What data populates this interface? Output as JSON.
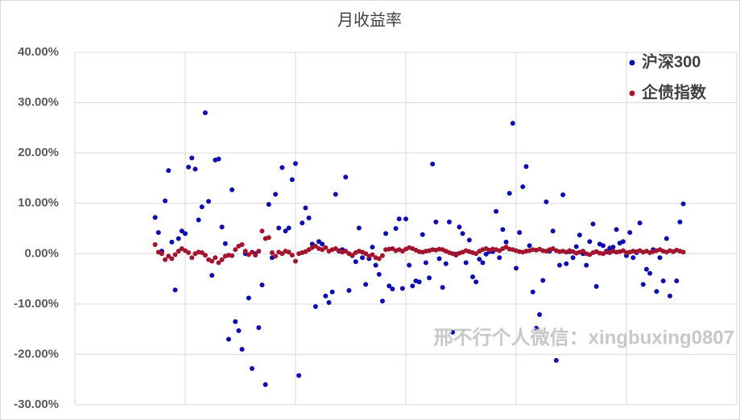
{
  "chart_data": {
    "type": "scatter",
    "title": "月收益率",
    "annotation": "邢不行个人微信：xingbuxing0807",
    "xlim": [
      0,
      198
    ],
    "xticks": [
      0,
      33,
      66,
      99,
      132,
      165,
      198
    ],
    "ylim": [
      -30,
      40
    ],
    "yticks": [
      {
        "value": -30,
        "label": "-30.00%"
      },
      {
        "value": -20,
        "label": "-20.00%"
      },
      {
        "value": -10,
        "label": "-10.00%"
      },
      {
        "value": 0,
        "label": "0.00%"
      },
      {
        "value": 10,
        "label": "10.00%"
      },
      {
        "value": 20,
        "label": "20.00%"
      },
      {
        "value": 30,
        "label": "30.00%"
      },
      {
        "value": 40,
        "label": "40.00%"
      }
    ],
    "grid": true,
    "legend": "top-right",
    "x": [
      24,
      25,
      26,
      27,
      28,
      29,
      30,
      31,
      32,
      33,
      34,
      35,
      36,
      37,
      38,
      39,
      40,
      41,
      42,
      43,
      44,
      45,
      46,
      47,
      48,
      49,
      50,
      51,
      52,
      53,
      54,
      55,
      56,
      57,
      58,
      59,
      60,
      61,
      62,
      63,
      64,
      65,
      66,
      67,
      68,
      69,
      70,
      71,
      72,
      73,
      74,
      75,
      76,
      77,
      78,
      79,
      80,
      81,
      82,
      83,
      84,
      85,
      86,
      87,
      88,
      89,
      90,
      91,
      92,
      93,
      94,
      95,
      96,
      97,
      98,
      99,
      100,
      101,
      102,
      103,
      104,
      105,
      106,
      107,
      108,
      109,
      110,
      111,
      112,
      113,
      114,
      115,
      116,
      117,
      118,
      119,
      120,
      121,
      122,
      123,
      124,
      125,
      126,
      127,
      128,
      129,
      130,
      131,
      132,
      133,
      134,
      135,
      136,
      137,
      138,
      139,
      140,
      141,
      142,
      143,
      144,
      145,
      146,
      147,
      148,
      149,
      150,
      151,
      152,
      153,
      154,
      155,
      156,
      157,
      158,
      159,
      160,
      161,
      162,
      163,
      164,
      165,
      166,
      167,
      168,
      169,
      170,
      171,
      172,
      173,
      174,
      175,
      176,
      177,
      178,
      179,
      180,
      181,
      182
    ],
    "series": [
      {
        "name": "沪深300",
        "color": "#0d0db0",
        "values": [
          7.2,
          4.2,
          0.5,
          10.5,
          16.5,
          2.3,
          -7.2,
          3.0,
          4.5,
          4.0,
          17.2,
          19.0,
          16.8,
          6.7,
          9.3,
          28.0,
          10.4,
          -4.3,
          18.6,
          18.8,
          5.3,
          2.0,
          -17.0,
          12.7,
          -13.5,
          -15.3,
          -19.0,
          0.0,
          -8.8,
          -22.8,
          0.0,
          -14.7,
          -6.2,
          -26.0,
          9.8,
          -0.8,
          11.8,
          5.1,
          17.1,
          4.5,
          5.1,
          14.7,
          17.9,
          -24.2,
          6.1,
          9.1,
          7.1,
          1.9,
          -10.5,
          2.4,
          1.9,
          -8.4,
          -9.7,
          -7.6,
          11.8,
          0.5,
          0.8,
          15.2,
          -7.3,
          -0.4,
          -1.6,
          5.1,
          -0.8,
          -6.1,
          -1.0,
          1.3,
          -2.3,
          -4.1,
          -9.4,
          4.0,
          -6.4,
          -7.0,
          5.0,
          6.9,
          -6.9,
          6.9,
          -2.3,
          -6.4,
          -5.4,
          -5.6,
          3.8,
          -1.8,
          -4.8,
          17.8,
          6.3,
          -1.0,
          -6.7,
          -2.0,
          6.3,
          -15.6,
          -0.1,
          5.3,
          4.0,
          -1.8,
          2.7,
          -4.6,
          -5.6,
          -1.1,
          -1.8,
          -0.1,
          0.4,
          0.4,
          8.4,
          -0.8,
          4.8,
          2.3,
          12.0,
          25.9,
          -2.9,
          4.2,
          13.3,
          17.3,
          1.6,
          -7.6,
          -14.8,
          -12.1,
          -5.3,
          10.3,
          0.5,
          4.5,
          -21.2,
          -2.3,
          11.7,
          -2.0,
          0.4,
          -0.8,
          1.4,
          3.7,
          0.0,
          -2.3,
          2.4,
          5.9,
          -6.5,
          1.9,
          1.6,
          0.5,
          1.1,
          1.3,
          4.8,
          2.1,
          2.4,
          -0.4,
          4.2,
          -0.8,
          0.2,
          6.1,
          -6.1,
          -3.1,
          -3.9,
          0.8,
          -7.5,
          -0.8,
          -5.4,
          3.0,
          -8.4,
          0.4,
          -5.4,
          6.3,
          9.9
        ]
      },
      {
        "name": "企债指数",
        "color": "#a3152f",
        "values": [
          1.8,
          0.3,
          0.0,
          -1.2,
          -0.5,
          -1.0,
          -0.2,
          0.5,
          1.0,
          0.6,
          0.2,
          -0.8,
          0.0,
          0.3,
          0.2,
          -0.3,
          -1.2,
          -1.5,
          -0.8,
          -1.8,
          -1.2,
          -0.5,
          -0.3,
          -0.4,
          0.8,
          1.5,
          1.8,
          0.5,
          -0.2,
          0.3,
          -0.3,
          0.5,
          4.5,
          3.0,
          3.2,
          0.2,
          -0.5,
          0.3,
          0.0,
          0.5,
          0.3,
          -0.3,
          -1.5,
          0.0,
          0.2,
          0.4,
          0.8,
          1.2,
          1.5,
          1.0,
          0.8,
          1.2,
          0.5,
          0.8,
          1.0,
          0.6,
          0.3,
          0.5,
          0.0,
          -0.3,
          0.2,
          0.5,
          0.3,
          0.0,
          -0.5,
          -0.2,
          -0.8,
          -1.0,
          -0.4,
          0.8,
          0.9,
          1.0,
          0.6,
          0.8,
          0.5,
          0.9,
          1.2,
          1.0,
          0.7,
          0.4,
          0.3,
          0.5,
          0.6,
          0.8,
          0.7,
          0.9,
          0.8,
          0.5,
          0.2,
          0.0,
          -0.3,
          0.1,
          0.3,
          0.6,
          0.4,
          0.2,
          0.0,
          0.5,
          0.8,
          1.0,
          0.7,
          0.9,
          0.8,
          0.6,
          1.0,
          1.3,
          0.9,
          0.8,
          0.6,
          0.4,
          0.3,
          0.5,
          0.6,
          0.8,
          0.7,
          0.9,
          0.6,
          0.5,
          0.8,
          1.0,
          0.6,
          0.4,
          0.5,
          0.3,
          0.6,
          0.4,
          0.1,
          0.3,
          0.5,
          0.0,
          -0.2,
          0.2,
          0.4,
          0.1,
          0.0,
          0.3,
          0.2,
          0.5,
          0.3,
          0.4,
          0.6,
          0.2,
          0.3,
          0.5,
          0.4,
          0.6,
          0.3,
          0.5,
          0.2,
          0.4,
          0.6,
          0.8,
          0.5,
          0.3,
          0.6,
          0.4,
          0.7,
          0.5,
          0.3
        ]
      }
    ]
  }
}
